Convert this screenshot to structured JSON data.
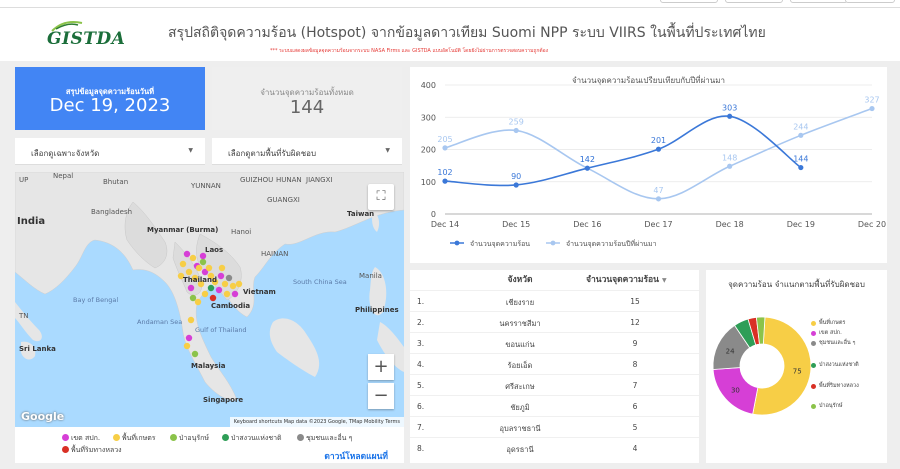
{
  "header": {
    "logo_text": "GISTDA",
    "title": "สรุปสถิติจุดความร้อน (Hotspot) จากข้อมูลดาวเทียม Suomi NPP ระบบ VIIRS  ในพื้นที่ประเทศไทย",
    "subtitle": "*** ระบบแสดงผลข้อมูลจุดความร้อนจากระบบ NASA Firms และ GISTDA แบบอัตโนมัติ โดยยังไม่ผ่านการตรวจสอบความถูกต้อง"
  },
  "summary": {
    "date_label": "สรุปข้อมูลจุดความร้อนวันที่",
    "date_value": "Dec 19, 2023",
    "total_label": "จำนวนจุดความร้อนทั้งหมด",
    "total_value": "144"
  },
  "filters": {
    "province": "เลือกดูเฉพาะจังหวัด",
    "area": "เลือกดูตามพื้นที่รับผิดชอบ"
  },
  "map": {
    "labels": {
      "nepal": "Nepal",
      "bhutan": "Bhutan",
      "india": "India",
      "bangladesh": "Bangladesh",
      "myanmar": "Myanmar\n(Burma)",
      "laos": "Laos",
      "thailand": "Thailand",
      "vietnam": "Vietnam",
      "cambodia": "Cambodia",
      "taiwan": "Taiwan",
      "philippines": "Philippines",
      "srilanka": "Sri Lanka",
      "malaysia": "Malaysia",
      "singapore": "Singapore",
      "bay": "Bay of Bengal",
      "andaman": "Andaman Sea",
      "gulf": "Gulf of\nThailand",
      "scs": "South\nChina Sea",
      "yunnan": "YUNNAN",
      "guangxi": "GUANGXI",
      "guizhou": "GUIZHOU",
      "hunan": "HUNAN",
      "jiangxi": "JIANGXI",
      "hainan": "HAINAN",
      "up": "UP",
      "tn": "TN",
      "manila": "Manila",
      "hanoi": "Hanoi"
    },
    "google": "Google",
    "attribution": "Keyboard shortcuts   Map data ©2023 Google, TMap Mobility   Terms",
    "zoom_in": "+",
    "zoom_out": "−",
    "fullscreen": "⛶"
  },
  "map_legend": {
    "items": [
      {
        "label": "เขต สปก.",
        "color": "#d63fd6"
      },
      {
        "label": "พื้นที่เกษตร",
        "color": "#f7ce46"
      },
      {
        "label": "ป่าอนุรักษ์",
        "color": "#8bc34a"
      },
      {
        "label": "ป่าสงวนแห่งชาติ",
        "color": "#2e9e57"
      },
      {
        "label": "ชุมชนและอื่น ๆ",
        "color": "#8a8a8a"
      },
      {
        "label": "พื้นที่ริมทางหลวง",
        "color": "#d93025"
      }
    ],
    "download": "ดาวน์โหลดแผนที่"
  },
  "line_chart": {
    "title": "จำนวนจุดความร้อนเปรียบเทียบกับปีที่ผ่านมา",
    "legend_current": "จำนวนจุดความร้อน",
    "legend_previous": "จำนวนจุดความร้อนปีที่ผ่านมา"
  },
  "chart_data": {
    "type": "line",
    "title": "จำนวนจุดความร้อนเปรียบเทียบกับปีที่ผ่านมา",
    "x": [
      "Dec 14",
      "Dec 15",
      "Dec 16",
      "Dec 17",
      "Dec 18",
      "Dec 19",
      "Dec 20"
    ],
    "yticks": [
      0,
      100,
      200,
      300,
      400
    ],
    "ylim": [
      0,
      400
    ],
    "series": [
      {
        "name": "จำนวนจุดความร้อน",
        "color": "#3b78d8",
        "values": [
          102,
          90,
          142,
          201,
          303,
          144,
          null
        ]
      },
      {
        "name": "จำนวนจุดความร้อนปีที่ผ่านมา",
        "color": "#a8c7f0",
        "values": [
          205,
          259,
          142,
          47,
          148,
          244,
          327
        ]
      }
    ],
    "legend": "bottom-left",
    "grid": true
  },
  "table": {
    "col_province": "จังหวัด",
    "col_count": "จำนวนจุดความร้อน",
    "rows": [
      {
        "no": "1.",
        "province": "เชียงราย",
        "count": "15"
      },
      {
        "no": "2.",
        "province": "นครราชสีมา",
        "count": "12"
      },
      {
        "no": "3.",
        "province": "ขอนแก่น",
        "count": "9"
      },
      {
        "no": "4.",
        "province": "ร้อยเอ็ด",
        "count": "8"
      },
      {
        "no": "5.",
        "province": "ศรีสะเกษ",
        "count": "7"
      },
      {
        "no": "6.",
        "province": "ชัยภูมิ",
        "count": "6"
      },
      {
        "no": "7.",
        "province": "อุบลราชธานี",
        "count": "5"
      },
      {
        "no": "8.",
        "province": "อุดรธานี",
        "count": "4"
      }
    ]
  },
  "pie": {
    "title": "จุดความร้อน จำแนกตามพื้นที่รับผิดชอบ",
    "slices": [
      {
        "label": "พื้นที่เกษตร",
        "value": 75,
        "color": "#f7ce46"
      },
      {
        "label": "เขต สปก.",
        "value": 30,
        "color": "#d63fd6"
      },
      {
        "label": "ชุมชนและอื่น ๆ",
        "value": 24,
        "color": "#8a8a8a"
      },
      {
        "label": "ป่าสงวนแห่งชาติ",
        "value": 7,
        "color": "#2e9e57"
      },
      {
        "label": "พื้นที่ริมทางหลวง",
        "value": 4,
        "color": "#d93025"
      },
      {
        "label": "ป่าอนุรักษ์",
        "value": 4,
        "color": "#8bc34a"
      }
    ],
    "legend": [
      {
        "label": "พื้นที่เกษตร",
        "color": "#f7ce46"
      },
      {
        "label": "เขต สปก.",
        "color": "#d63fd6"
      },
      {
        "label": "ชุมชนและอื่น ๆ",
        "color": "#8a8a8a"
      },
      {
        "label": "ป่าสงวนแห่งชาติ",
        "color": "#2e9e57"
      },
      {
        "label": "พื้นที่ริมทางหลวง",
        "color": "#d93025"
      },
      {
        "label": "ป่าอนุรักษ์",
        "color": "#8bc34a"
      }
    ]
  }
}
